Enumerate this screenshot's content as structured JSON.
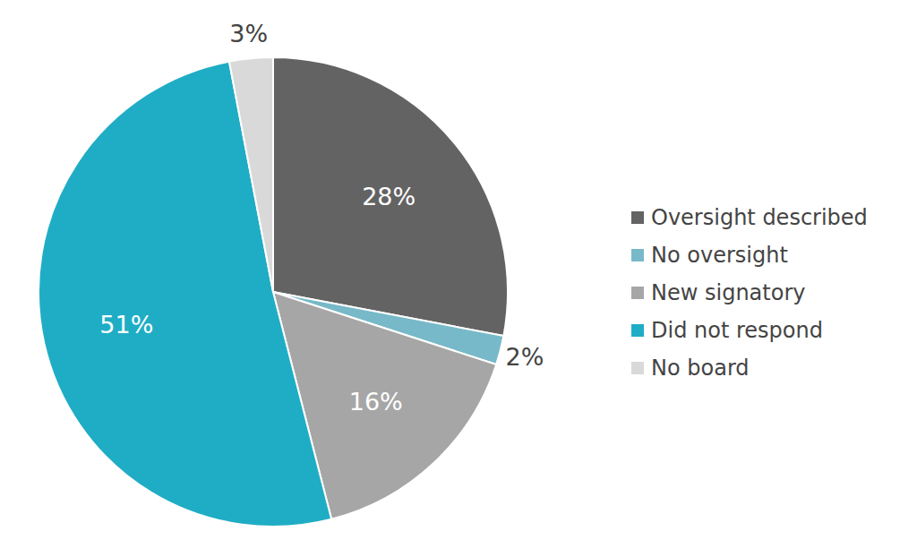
{
  "chart_data": {
    "type": "pie",
    "categories": [
      "Oversight described",
      "No oversight",
      "New signatory",
      "Did not respond",
      "No board"
    ],
    "values": [
      28,
      2,
      16,
      51,
      3
    ],
    "value_labels": [
      "28%",
      "2%",
      "16%",
      "51%",
      "3%"
    ],
    "colors": [
      "#636363",
      "#77b9c8",
      "#a6a6a6",
      "#1fadc5",
      "#d9d9d9"
    ],
    "data_labels": true,
    "legend": "right"
  }
}
